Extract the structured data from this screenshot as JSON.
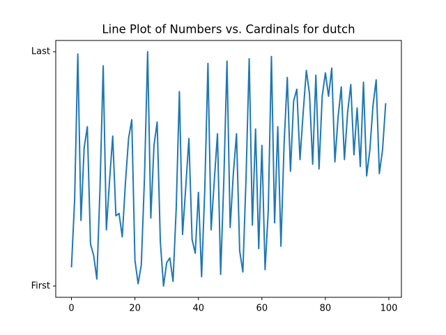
{
  "chart_data": {
    "type": "line",
    "title": "Line Plot of Numbers vs. Cardinals for dutch",
    "x": [
      0,
      1,
      2,
      3,
      4,
      5,
      6,
      7,
      8,
      9,
      10,
      11,
      12,
      13,
      14,
      15,
      16,
      17,
      18,
      19,
      20,
      21,
      22,
      23,
      24,
      25,
      26,
      27,
      28,
      29,
      30,
      31,
      32,
      33,
      34,
      35,
      36,
      37,
      38,
      39,
      40,
      41,
      42,
      43,
      44,
      45,
      46,
      47,
      48,
      49,
      50,
      51,
      52,
      53,
      54,
      55,
      56,
      57,
      58,
      59,
      60,
      61,
      62,
      63,
      64,
      65,
      66,
      67,
      68,
      69,
      70,
      71,
      72,
      73,
      74,
      75,
      76,
      77,
      78,
      79,
      80,
      81,
      82,
      83,
      84,
      85,
      86,
      87,
      88,
      89,
      90,
      91,
      92,
      93,
      94,
      95,
      96,
      97,
      98,
      99
    ],
    "series": [
      {
        "color": "#1f77b4",
        "values": [
          0.08,
          0.37,
          0.99,
          0.28,
          0.59,
          0.68,
          0.18,
          0.13,
          0.03,
          0.42,
          0.94,
          0.24,
          0.45,
          0.64,
          0.3,
          0.31,
          0.21,
          0.44,
          0.63,
          0.71,
          0.11,
          0.01,
          0.09,
          0.46,
          1.0,
          0.29,
          0.6,
          0.7,
          0.19,
          0.0,
          0.1,
          0.12,
          0.02,
          0.33,
          0.83,
          0.22,
          0.42,
          0.63,
          0.2,
          0.14,
          0.4,
          0.04,
          0.41,
          0.95,
          0.24,
          0.45,
          0.65,
          0.05,
          0.45,
          0.96,
          0.25,
          0.48,
          0.65,
          0.15,
          0.06,
          0.46,
          0.97,
          0.26,
          0.67,
          0.16,
          0.6,
          0.07,
          0.32,
          0.98,
          0.27,
          0.68,
          0.17,
          0.61,
          0.89,
          0.49,
          0.79,
          0.84,
          0.54,
          0.74,
          0.92,
          0.82,
          0.52,
          0.9,
          0.5,
          0.81,
          0.91,
          0.81,
          0.93,
          0.53,
          0.72,
          0.85,
          0.54,
          0.74,
          0.86,
          0.56,
          0.76,
          0.51,
          0.87,
          0.47,
          0.58,
          0.77,
          0.88,
          0.48,
          0.58,
          0.78
        ]
      }
    ],
    "xlim": [
      -4.95,
      103.95
    ],
    "xticks": [
      0,
      20,
      40,
      60,
      80,
      100
    ],
    "ylim": [
      -0.048,
      1.048
    ],
    "yticks": [
      {
        "value": 0,
        "label": "First"
      },
      {
        "value": 1,
        "label": "Last"
      }
    ]
  }
}
